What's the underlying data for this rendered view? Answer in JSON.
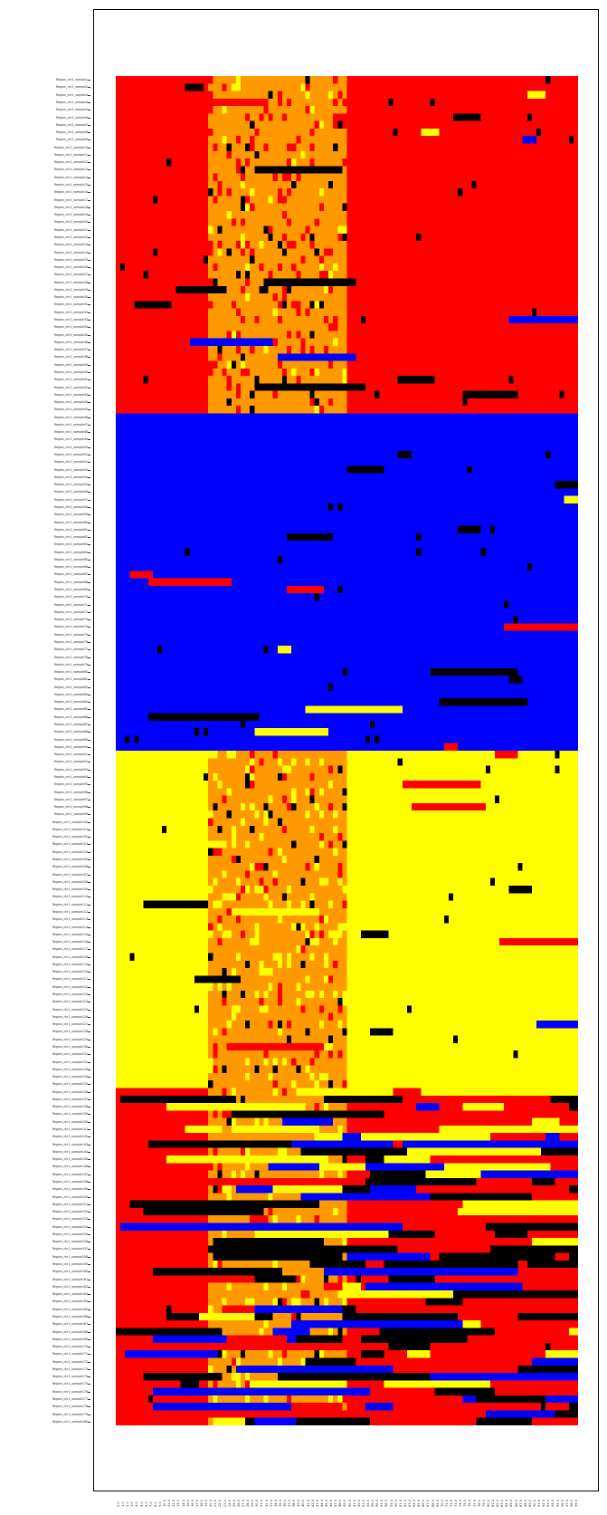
{
  "chart_data": {
    "type": "heatmap",
    "title": "",
    "xlabel": "",
    "ylabel": "",
    "grid": false,
    "legend": "none",
    "row_label_prefix": "Region_chr1_sample",
    "row_count": 180,
    "column_count": 100,
    "x_tick_labels": [
      "0.0",
      "1.0",
      "2.0",
      "3.0",
      "4.0",
      "5.0",
      "6.0",
      "7.0",
      "8.0",
      "9.0",
      "10.0",
      "11.0",
      "12.0",
      "13.0",
      "14.0",
      "15.0",
      "16.0",
      "17.0",
      "18.0",
      "19.0",
      "20.0",
      "21.0",
      "22.0",
      "23.0",
      "24.0",
      "25.0",
      "26.0",
      "27.0",
      "28.0",
      "29.0",
      "30.0",
      "31.0",
      "32.0",
      "33.0",
      "34.0",
      "35.0",
      "36.0",
      "37.0",
      "38.0",
      "39.0",
      "40.0",
      "41.0",
      "42.0",
      "43.0",
      "44.0",
      "45.0",
      "46.0",
      "47.0",
      "48.0",
      "49.0",
      "50.0",
      "51.0",
      "52.0",
      "53.0",
      "54.0",
      "55.0",
      "56.0",
      "57.0",
      "58.0",
      "59.0",
      "60.0",
      "61.0",
      "62.0",
      "63.0",
      "64.0",
      "65.0",
      "66.0",
      "67.0",
      "68.0",
      "69.0",
      "70.0",
      "71.0",
      "72.0",
      "73.0",
      "74.0",
      "75.0",
      "76.0",
      "77.0",
      "78.0",
      "79.0",
      "80.0",
      "81.0",
      "82.0",
      "83.0",
      "84.0",
      "85.0",
      "86.0",
      "87.0",
      "88.0",
      "89.0",
      "90.0",
      "91.0",
      "92.0",
      "93.0",
      "94.0",
      "95.0",
      "96.0",
      "97.0",
      "98.0",
      "99.0"
    ],
    "colors": {
      "red": "#ff0000",
      "blue": "#0000ff",
      "yellow": "#ffff00",
      "orange": "#ff9900",
      "black": "#000000"
    },
    "blocks": [
      {
        "name": "block-1",
        "rows": [
          0,
          45
        ],
        "base": "red",
        "middle": "orange",
        "middle_cols": [
          20,
          50
        ],
        "middle_speckle": [
          "red",
          "yellow",
          "black"
        ]
      },
      {
        "name": "block-2",
        "rows": [
          45,
          90
        ],
        "base": "blue",
        "middle": "blue",
        "middle_cols": [
          20,
          50
        ],
        "middle_speckle": [
          "blue"
        ]
      },
      {
        "name": "block-3",
        "rows": [
          90,
          135
        ],
        "base": "yellow",
        "middle": "orange",
        "middle_cols": [
          20,
          50
        ],
        "middle_speckle": [
          "yellow",
          "red",
          "black"
        ]
      },
      {
        "name": "block-4",
        "rows": [
          135,
          180
        ],
        "base": "red",
        "middle": "orange",
        "middle_cols": [
          20,
          50
        ],
        "middle_speckle": [
          "yellow",
          "red",
          "black"
        ],
        "mixed": true
      }
    ]
  }
}
